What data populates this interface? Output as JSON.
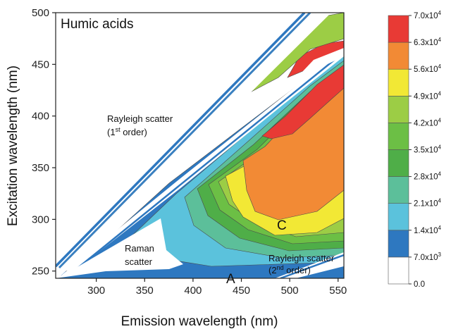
{
  "chart_data": {
    "type": "heatmap",
    "subtype": "excitation-emission contour map",
    "title": "Humic acids",
    "xlabel": "Emission wavelength (nm)",
    "ylabel": "Excitation wavelength (nm)",
    "xlim": [
      258,
      556
    ],
    "ylim": [
      243,
      500
    ],
    "xticks": [
      300,
      350,
      400,
      450,
      500,
      550
    ],
    "yticks": [
      250,
      300,
      350,
      400,
      450,
      500
    ],
    "colorbar": {
      "levels": [
        "0.0",
        "7.0x10^3",
        "1.4x10^4",
        "2.1x10^4",
        "2.8x10^4",
        "3.5x10^4",
        "4.2x10^4",
        "4.9x10^4",
        "5.6x10^4",
        "6.3x10^4",
        "7.0x10^4"
      ],
      "level_values": [
        0,
        7000,
        14000,
        21000,
        28000,
        35000,
        42000,
        49000,
        56000,
        63000,
        70000
      ],
      "colors": [
        "#ffffff",
        "#2e78c0",
        "#5bc2dc",
        "#5cbf9a",
        "#4fae48",
        "#6cbf45",
        "#9ccd45",
        "#f2e835",
        "#f28a35",
        "#e83a35"
      ]
    },
    "annotations": {
      "rayleigh1": {
        "line1": "Rayleigh scatter",
        "line2_pre": "(1",
        "line2_sup": "st",
        "line2_post": " order)"
      },
      "rayleigh2": {
        "line1": "Rayleigh scatter",
        "line2_pre": "(2",
        "line2_sup": "nd",
        "line2_post": " order)"
      },
      "raman": {
        "line1": "Raman",
        "line2": "scatter"
      },
      "peak_a": "A",
      "peak_c": "C"
    },
    "peaks": [
      {
        "label": "C",
        "excitation": 300,
        "emission": 490
      },
      {
        "label": "A",
        "excitation": 245,
        "emission": 440
      }
    ]
  }
}
